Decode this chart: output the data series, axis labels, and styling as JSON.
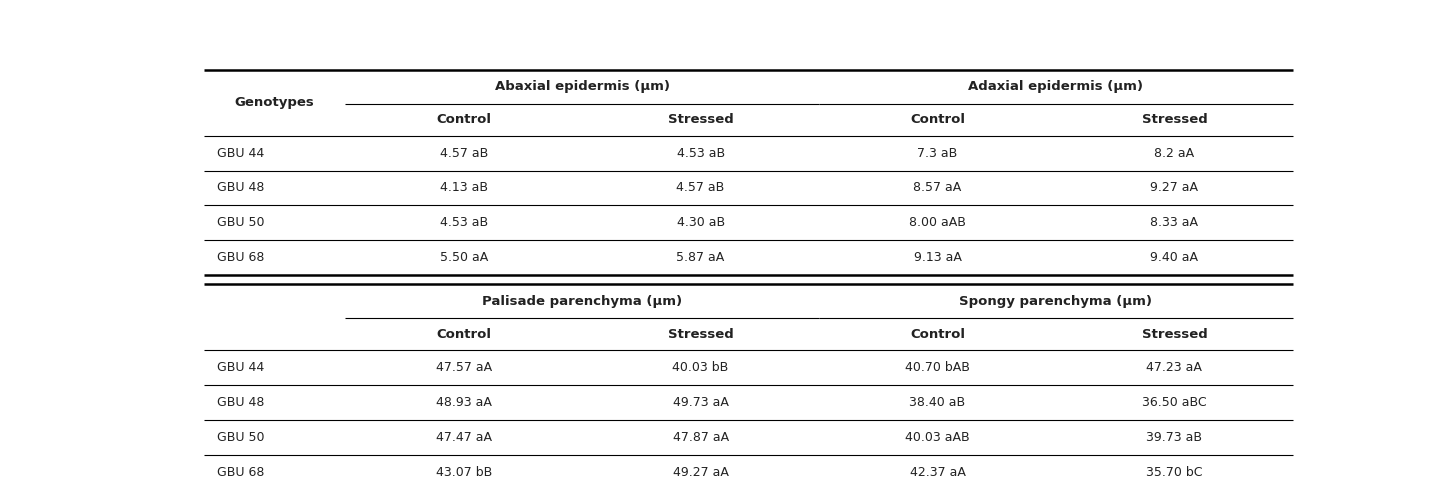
{
  "col1_header": "Genotypes",
  "top_span_headers": [
    {
      "label": "Abaxial epidermis (μm)"
    },
    {
      "label": "Adaxial epidermis (μm)"
    }
  ],
  "bottom_span_headers": [
    {
      "label": "Palisade parenchyma (μm)"
    },
    {
      "label": "Spongy parenchyma (μm)"
    }
  ],
  "sub_headers": [
    "Control",
    "Stressed",
    "Control",
    "Stressed"
  ],
  "top_rows": [
    [
      "GBU 44",
      "4.57 aB",
      "4.53 aB",
      "7.3 aB",
      "8.2 aA"
    ],
    [
      "GBU 48",
      "4.13 aB",
      "4.57 aB",
      "8.57 aA",
      "9.27 aA"
    ],
    [
      "GBU 50",
      "4.53 aB",
      "4.30 aB",
      "8.00 aAB",
      "8.33 aA"
    ],
    [
      "GBU 68",
      "5.50 aA",
      "5.87 aA",
      "9.13 aA",
      "9.40 aA"
    ]
  ],
  "bottom_rows": [
    [
      "GBU 44",
      "47.57 aA",
      "40.03 bB",
      "40.70 bAB",
      "47.23 aA"
    ],
    [
      "GBU 48",
      "48.93 aA",
      "49.73 aA",
      "38.40 aB",
      "36.50 aBC"
    ],
    [
      "GBU 50",
      "47.47 aA",
      "47.87 aA",
      "40.03 aAB",
      "39.73 aB"
    ],
    [
      "GBU 68",
      "43.07 bB",
      "49.27 aA",
      "42.37 aA",
      "35.70 bC"
    ]
  ],
  "background_color": "#ffffff",
  "text_color": "#222222",
  "figsize": [
    14.49,
    4.87
  ],
  "dpi": 100
}
